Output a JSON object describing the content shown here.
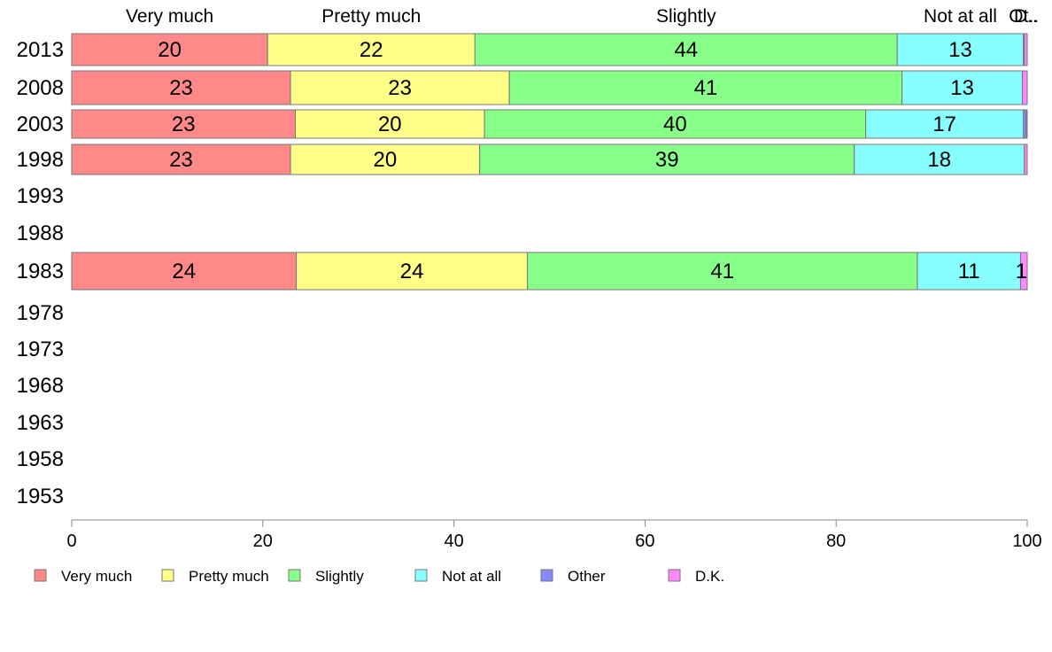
{
  "chart_data": {
    "type": "bar",
    "orientation": "horizontal",
    "stacked": true,
    "categories": [
      "2013",
      "2008",
      "2003",
      "1998",
      "1993",
      "1988",
      "1983",
      "1978",
      "1973",
      "1968",
      "1963",
      "1958",
      "1953"
    ],
    "series": [
      {
        "name": "Very much",
        "values": [
          20.5,
          22.9,
          23.4,
          22.9,
          null,
          null,
          23.5,
          null,
          null,
          null,
          null,
          null,
          null
        ],
        "labels": [
          "20",
          "23",
          "23",
          "23",
          "",
          "",
          "24",
          "",
          "",
          "",
          "",
          "",
          ""
        ]
      },
      {
        "name": "Pretty much",
        "values": [
          21.7,
          22.9,
          19.8,
          19.8,
          null,
          null,
          24.2,
          null,
          null,
          null,
          null,
          null,
          null
        ],
        "labels": [
          "22",
          "23",
          "20",
          "20",
          "",
          "",
          "24",
          "",
          "",
          "",
          "",
          "",
          ""
        ]
      },
      {
        "name": "Slightly",
        "values": [
          44.2,
          41.1,
          39.9,
          39.2,
          null,
          null,
          40.8,
          null,
          null,
          null,
          null,
          null,
          null
        ],
        "labels": [
          "44",
          "41",
          "40",
          "39",
          "",
          "",
          "41",
          "",
          "",
          "",
          "",
          "",
          ""
        ]
      },
      {
        "name": "Not at all",
        "values": [
          13.2,
          12.6,
          16.5,
          17.8,
          null,
          null,
          10.8,
          null,
          null,
          null,
          null,
          null,
          null
        ],
        "labels": [
          "13",
          "13",
          "17",
          "18",
          "",
          "",
          "11",
          "",
          "",
          "",
          "",
          "",
          ""
        ]
      },
      {
        "name": "Other",
        "values": [
          0.1,
          0.0,
          0.3,
          0.0,
          null,
          null,
          0.0,
          null,
          null,
          null,
          null,
          null,
          null
        ],
        "labels": [
          "",
          "",
          "",
          "",
          "",
          "",
          "",
          "",
          "",
          "",
          "",
          "",
          ""
        ]
      },
      {
        "name": "D.K.",
        "values": [
          0.3,
          0.5,
          0.1,
          0.3,
          null,
          null,
          0.7,
          null,
          null,
          null,
          null,
          null,
          null
        ],
        "labels": [
          "",
          "",
          "",
          "",
          "",
          "",
          "1",
          "",
          "",
          "",
          "",
          "",
          ""
        ]
      }
    ],
    "colors": [
      "#ff8888",
      "#ffff88",
      "#88ff88",
      "#88ffff",
      "#8888ff",
      "#ff88ff"
    ],
    "top_labels": [
      "Very much",
      "Pretty much",
      "Slightly",
      "Not at all",
      "Ot..",
      "D.."
    ],
    "xlim": [
      0,
      100
    ],
    "xticks": [
      0,
      20,
      40,
      60,
      80,
      100
    ],
    "grid": false,
    "legend_position": "bottom"
  }
}
